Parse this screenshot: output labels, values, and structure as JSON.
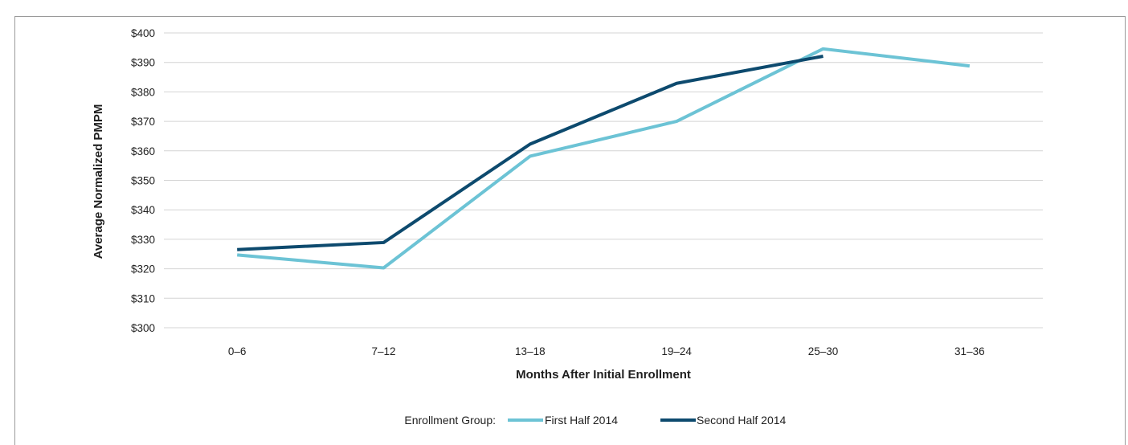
{
  "chart_data": {
    "type": "line",
    "title": "",
    "xlabel": "Months After Initial Enrollment",
    "ylabel": "Average Normalized PMPM",
    "categories": [
      "0–6",
      "7–12",
      "13–18",
      "19–24",
      "25–30",
      "31–36"
    ],
    "ylim": [
      300,
      400
    ],
    "yticks": [
      300,
      310,
      320,
      330,
      340,
      350,
      360,
      370,
      380,
      390,
      400
    ],
    "ytick_labels": [
      "$300",
      "$310",
      "$320",
      "$330",
      "$340",
      "$350",
      "$360",
      "$370",
      "$380",
      "$390",
      "$400"
    ],
    "grid": true,
    "legend_title": "Enrollment Group:",
    "legend_position": "bottom",
    "series": [
      {
        "name": "First Half 2014",
        "color": "#6cc3d5",
        "values": [
          324.7,
          320.3,
          358.2,
          370.0,
          394.6,
          388.8
        ]
      },
      {
        "name": "Second Half 2014",
        "color": "#0d4a6e",
        "values": [
          326.5,
          328.9,
          362.3,
          382.9,
          392.1,
          null
        ]
      }
    ]
  }
}
